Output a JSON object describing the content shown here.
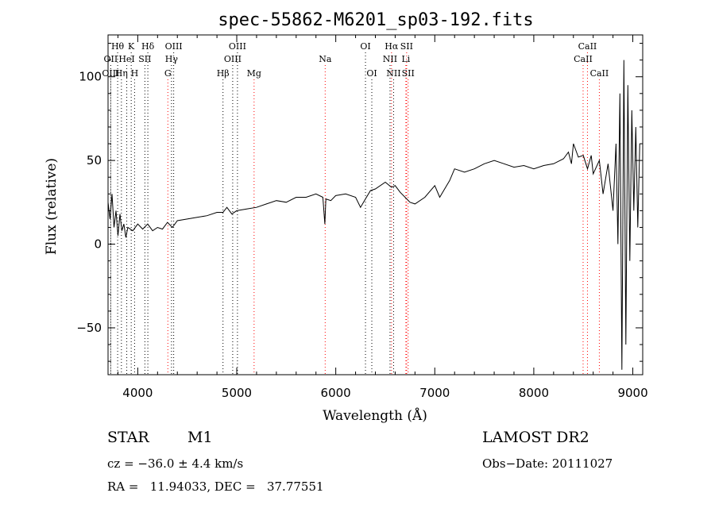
{
  "chart_data": {
    "type": "line",
    "title": "spec-55862-M6201_sp03-192.fits",
    "xlabel": "Wavelength (Å)",
    "ylabel": "Flux (relative)",
    "xlim": [
      3700,
      9100
    ],
    "ylim": [
      -78,
      125
    ],
    "x_ticks": [
      4000,
      5000,
      6000,
      7000,
      8000,
      9000
    ],
    "y_ticks": [
      -50,
      0,
      50,
      100
    ],
    "grid": false,
    "series": [
      {
        "color": "#000000",
        "x": [
          3700,
          3720,
          3740,
          3760,
          3780,
          3800,
          3820,
          3840,
          3860,
          3880,
          3900,
          3950,
          4000,
          4050,
          4100,
          4150,
          4200,
          4250,
          4300,
          4350,
          4400,
          4500,
          4600,
          4700,
          4800,
          4861,
          4900,
          4950,
          5000,
          5100,
          5200,
          5300,
          5400,
          5500,
          5600,
          5700,
          5800,
          5870,
          5890,
          5900,
          5950,
          6000,
          6100,
          6200,
          6250,
          6300,
          6350,
          6400,
          6500,
          6563,
          6600,
          6650,
          6700,
          6750,
          6800,
          6900,
          7000,
          7050,
          7100,
          7150,
          7200,
          7300,
          7400,
          7500,
          7600,
          7700,
          7800,
          7900,
          8000,
          8100,
          8200,
          8300,
          8350,
          8380,
          8400,
          8450,
          8500,
          8542,
          8580,
          8600,
          8662,
          8700,
          8750,
          8800,
          8830,
          8850,
          8870,
          8890,
          8910,
          8930,
          8950,
          8970,
          8990,
          9010,
          9030,
          9050,
          9070
        ],
        "y": [
          25,
          15,
          30,
          10,
          20,
          5,
          18,
          8,
          12,
          4,
          10,
          8,
          12,
          9,
          12,
          8,
          10,
          9,
          13,
          10,
          14,
          15,
          16,
          17,
          19,
          19,
          22,
          18,
          20,
          21,
          22,
          24,
          26,
          25,
          28,
          28,
          30,
          28,
          12,
          27,
          26,
          29,
          30,
          28,
          22,
          27,
          32,
          33,
          37,
          34,
          35,
          31,
          28,
          25,
          24,
          28,
          35,
          28,
          33,
          38,
          45,
          43,
          45,
          48,
          50,
          48,
          46,
          47,
          45,
          47,
          48,
          51,
          55,
          48,
          60,
          52,
          53,
          45,
          53,
          42,
          50,
          30,
          48,
          20,
          60,
          0,
          90,
          -75,
          110,
          -60,
          95,
          -10,
          80,
          20,
          70,
          10,
          60
        ]
      }
    ],
    "spectral_lines": [
      {
        "label": "Hθ",
        "wavelength": 3797,
        "row": 1,
        "color": "#000000"
      },
      {
        "label": "K",
        "wavelength": 3934,
        "row": 1,
        "color": "#000000"
      },
      {
        "label": "Hδ",
        "wavelength": 4102,
        "row": 1,
        "color": "#000000"
      },
      {
        "label": "OIII",
        "wavelength": 4363,
        "row": 1,
        "color": "#000000"
      },
      {
        "label": "OIII",
        "wavelength": 5007,
        "row": 1,
        "color": "#000000"
      },
      {
        "label": "OI",
        "wavelength": 6300,
        "row": 1,
        "color": "#000000"
      },
      {
        "label": "Hα",
        "wavelength": 6563,
        "row": 1,
        "color": "#ff0000"
      },
      {
        "label": "SII",
        "wavelength": 6716,
        "row": 1,
        "color": "#ff0000"
      },
      {
        "label": "CaII",
        "wavelength": 8542,
        "row": 1,
        "color": "#ff0000"
      },
      {
        "label": "OII",
        "wavelength": 3727,
        "row": 2,
        "color": "#000000"
      },
      {
        "label": "HeI",
        "wavelength": 3889,
        "row": 2,
        "color": "#000000"
      },
      {
        "label": "SII",
        "wavelength": 4072,
        "row": 2,
        "color": "#000000"
      },
      {
        "label": "Hγ",
        "wavelength": 4341,
        "row": 2,
        "color": "#000000"
      },
      {
        "label": "OIII",
        "wavelength": 4959,
        "row": 2,
        "color": "#000000"
      },
      {
        "label": "Na",
        "wavelength": 5893,
        "row": 2,
        "color": "#ff0000"
      },
      {
        "label": "NII",
        "wavelength": 6548,
        "row": 2,
        "color": "#000000"
      },
      {
        "label": "Li",
        "wavelength": 6708,
        "row": 2,
        "color": "#ff0000"
      },
      {
        "label": "CaII",
        "wavelength": 8498,
        "row": 2,
        "color": "#ff0000"
      },
      {
        "label": "OIII",
        "wavelength": 3727,
        "row": 3,
        "color": "#000000"
      },
      {
        "label": "Hη",
        "wavelength": 3835,
        "row": 3,
        "color": "#000000"
      },
      {
        "label": "H",
        "wavelength": 3968,
        "row": 3,
        "color": "#000000"
      },
      {
        "label": "G",
        "wavelength": 4304,
        "row": 3,
        "color": "#ff0000"
      },
      {
        "label": "Hβ",
        "wavelength": 4861,
        "row": 3,
        "color": "#000000"
      },
      {
        "label": "Mg",
        "wavelength": 5175,
        "row": 3,
        "color": "#ff0000"
      },
      {
        "label": "OI",
        "wavelength": 6364,
        "row": 3,
        "color": "#000000"
      },
      {
        "label": "NII",
        "wavelength": 6584,
        "row": 3,
        "color": "#000000"
      },
      {
        "label": "SII",
        "wavelength": 6731,
        "row": 3,
        "color": "#ff0000"
      },
      {
        "label": "CaII",
        "wavelength": 8662,
        "row": 3,
        "color": "#ff0000"
      }
    ]
  },
  "info": {
    "object_class": "STAR",
    "subclass": "M1",
    "survey": "LAMOST DR2",
    "redshift": "cz = −36.0 ± 4.4 km/s",
    "obs_date": "Obs−Date: 20111027",
    "coords": "RA =   11.94033, DEC =   37.77551"
  }
}
